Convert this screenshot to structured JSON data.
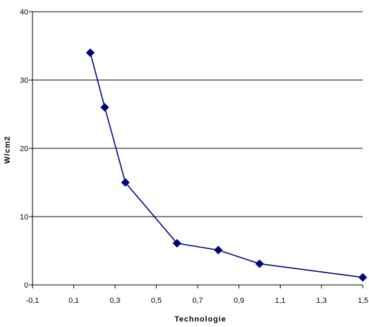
{
  "chart_data": {
    "type": "scatter",
    "xlabel": "Technologie",
    "ylabel": "W/cm2",
    "xlim": [
      -0.1,
      1.5
    ],
    "ylim": [
      0,
      40
    ],
    "x_ticks": [
      -0.1,
      0.1,
      0.3,
      0.5,
      0.7,
      0.9,
      1.1,
      1.3,
      1.5
    ],
    "x_tick_labels": [
      "-0,1",
      "0,1",
      "0,3",
      "0,5",
      "0,7",
      "0,9",
      "1,1",
      "1,3",
      "1,5"
    ],
    "y_ticks": [
      0,
      10,
      20,
      30,
      40
    ],
    "y_tick_labels": [
      "0",
      "10",
      "20",
      "30",
      "40"
    ],
    "grid": "horizontal",
    "legend": "none",
    "series": [
      {
        "x": [
          0.18,
          0.25,
          0.35,
          0.6,
          0.8,
          1.0,
          1.5
        ],
        "y": [
          34,
          26,
          15,
          6.1,
          5.1,
          3.1,
          1.1
        ],
        "line": true,
        "marker": "diamond",
        "color": "#000080"
      }
    ]
  }
}
